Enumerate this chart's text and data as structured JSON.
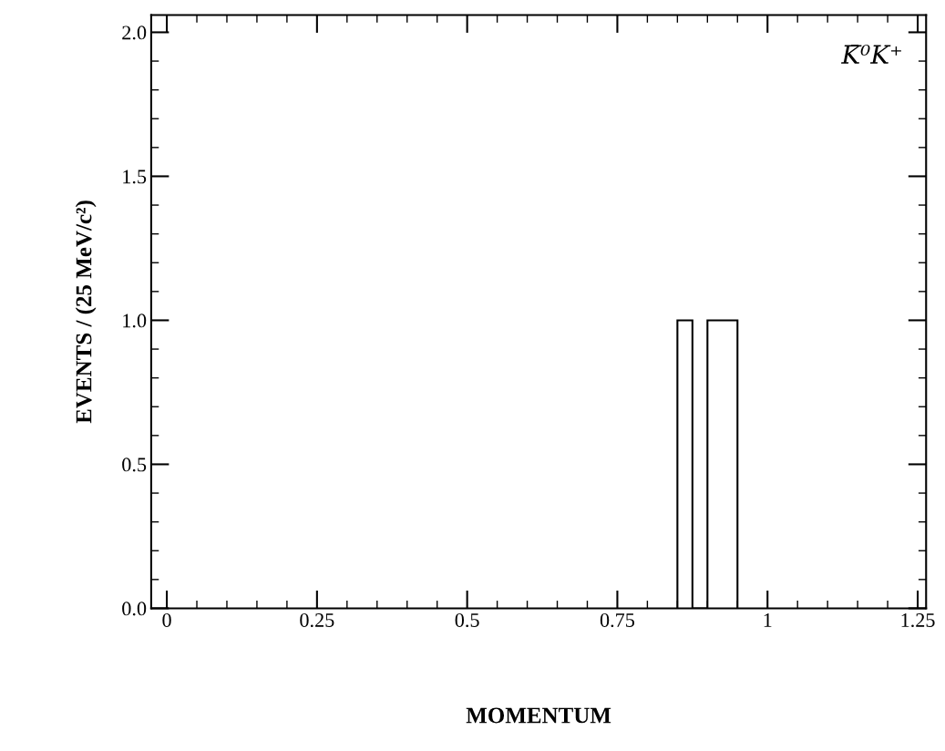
{
  "chart_data": {
    "type": "histogram",
    "bins": [
      0.85,
      0.875,
      0.9,
      0.925,
      0.95
    ],
    "values": [
      1,
      0,
      1,
      1
    ],
    "color": "#000000",
    "xlabel": "MOMENTUM",
    "ylabel": "EVENTS / (25 MeV/c²)",
    "annotations": [
      "K̄⁰K⁺"
    ],
    "xlim": [
      -0.026,
      1.264
    ],
    "ylim": [
      0,
      2.06
    ],
    "xticks": [
      0,
      0.25,
      0.5,
      0.75,
      1,
      1.25
    ],
    "yticks": [
      {
        "value": 0,
        "label": "0.0"
      },
      {
        "value": 0.5,
        "label": "0.5"
      },
      {
        "value": 1,
        "label": "1.0"
      },
      {
        "value": 1.5,
        "label": "1.5"
      },
      {
        "value": 2,
        "label": "2.0"
      }
    ],
    "grid": false,
    "legend": false
  }
}
